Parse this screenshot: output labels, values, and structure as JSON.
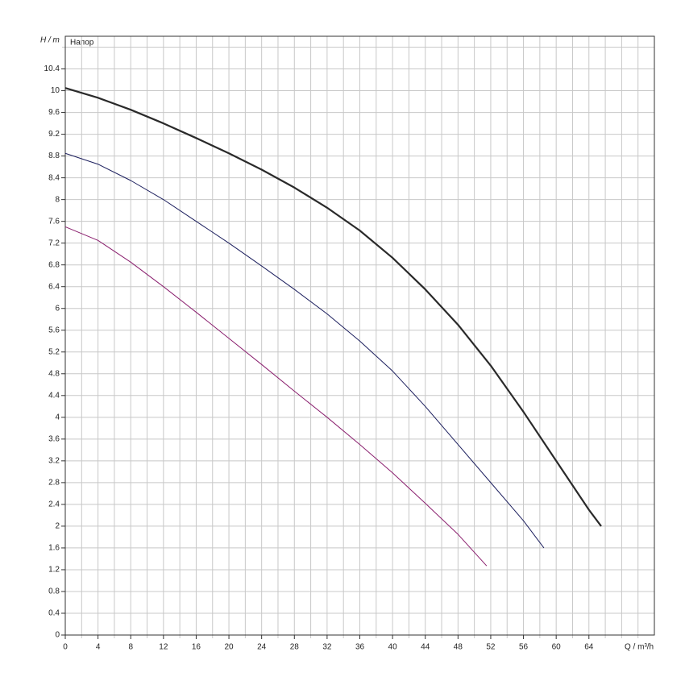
{
  "chart_data": {
    "type": "line",
    "y_label": "H / m",
    "x_label": "Q / m³/h",
    "annotation": "Напор",
    "xlim": [
      0,
      72
    ],
    "ylim": [
      0,
      11
    ],
    "xticks": [
      0,
      4,
      8,
      12,
      16,
      20,
      24,
      28,
      32,
      36,
      40,
      44,
      48,
      52,
      56,
      60,
      64
    ],
    "xminorticks": [
      2,
      6,
      10,
      14,
      18,
      22,
      26,
      30,
      34,
      38,
      42,
      46,
      50,
      54,
      58,
      62,
      66,
      68,
      70
    ],
    "yticks": [
      0,
      0.4,
      0.8,
      1.2,
      1.6,
      2,
      2.4,
      2.8,
      3.2,
      3.6,
      4,
      4.4,
      4.8,
      5.2,
      5.6,
      6,
      6.4,
      6.8,
      7.2,
      7.6,
      8,
      8.4,
      8.8,
      9.2,
      9.6,
      10,
      10.4
    ],
    "yminorticks": [
      10.8
    ],
    "grid": true,
    "series": [
      {
        "color": "#2a2a2a",
        "width": 2.2,
        "x": [
          0,
          4,
          8,
          12,
          16,
          20,
          24,
          28,
          32,
          36,
          40,
          44,
          48,
          52,
          56,
          60,
          64,
          65.5
        ],
        "values": [
          10.05,
          9.87,
          9.65,
          9.4,
          9.13,
          8.85,
          8.55,
          8.22,
          7.85,
          7.43,
          6.93,
          6.35,
          5.7,
          4.95,
          4.1,
          3.2,
          2.3,
          2.0
        ]
      },
      {
        "color": "#1c1f5e",
        "width": 1,
        "x": [
          0,
          4,
          8,
          12,
          16,
          20,
          24,
          28,
          32,
          36,
          40,
          44,
          48,
          52,
          56,
          58.5
        ],
        "values": [
          8.85,
          8.65,
          8.35,
          8.0,
          7.6,
          7.2,
          6.78,
          6.35,
          5.9,
          5.4,
          4.85,
          4.2,
          3.5,
          2.8,
          2.1,
          1.6
        ]
      },
      {
        "color": "#8a1f6e",
        "width": 1,
        "x": [
          0,
          4,
          8,
          12,
          16,
          20,
          24,
          28,
          32,
          36,
          40,
          44,
          48,
          51.5
        ],
        "values": [
          7.5,
          7.25,
          6.85,
          6.4,
          5.93,
          5.45,
          4.97,
          4.48,
          4.0,
          3.5,
          2.98,
          2.42,
          1.85,
          1.27
        ]
      }
    ]
  }
}
